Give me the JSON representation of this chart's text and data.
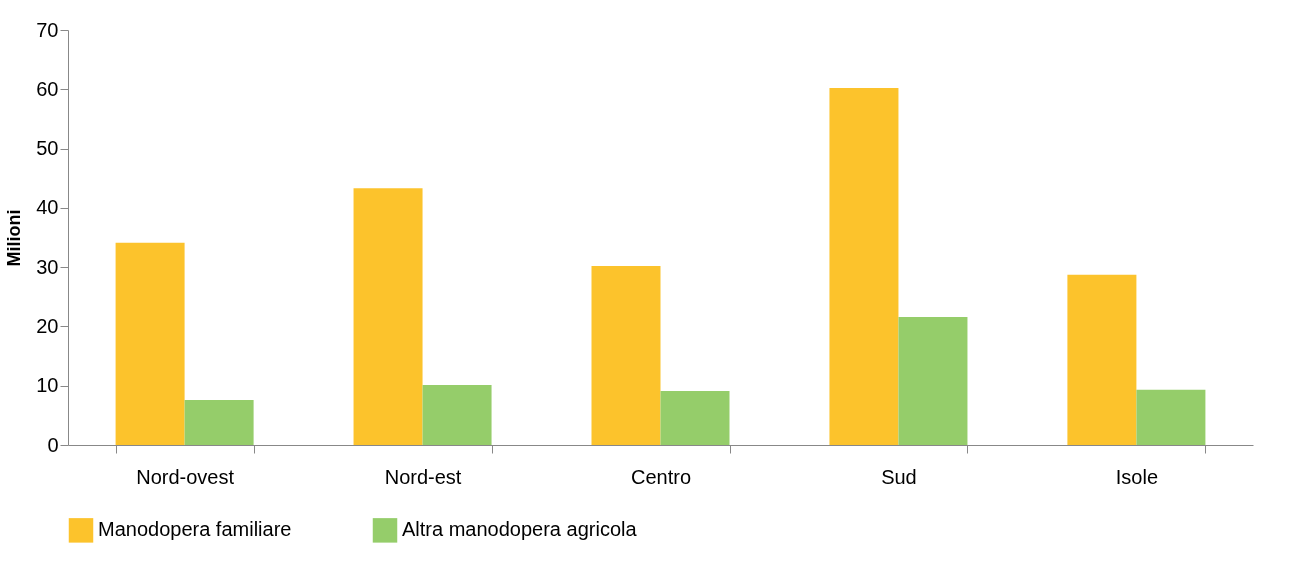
{
  "chart_data": {
    "type": "bar",
    "ylabel": "Milioni",
    "categories": [
      "Nord-ovest",
      "Nord-est",
      "Centro",
      "Sud",
      "Isole"
    ],
    "series": [
      {
        "name": "Manodopera familiare",
        "color": "#fcc32c",
        "values": [
          34.1,
          43.3,
          30.2,
          60.2,
          28.7
        ]
      },
      {
        "name": "Altra manodopera agricola",
        "color": "#95cd6a",
        "values": [
          7.6,
          10.1,
          9.1,
          21.6,
          9.3
        ]
      }
    ],
    "ylim": [
      0,
      70
    ],
    "yticks": [
      0,
      10,
      20,
      30,
      40,
      50,
      60,
      70
    ],
    "grid": false,
    "legend": "bottom"
  }
}
